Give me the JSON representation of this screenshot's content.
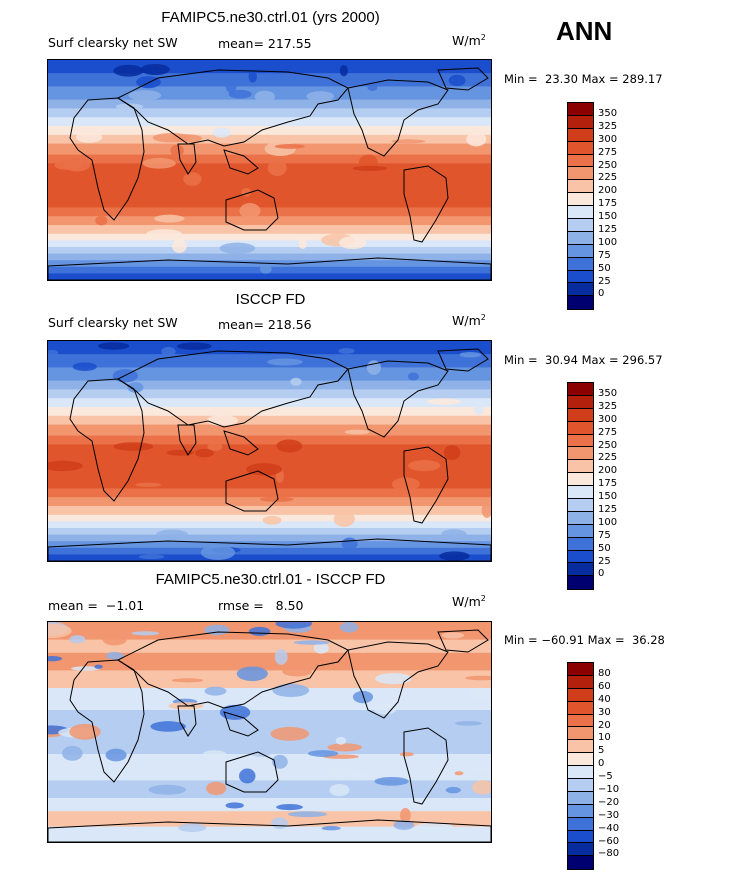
{
  "season": "ANN",
  "panels": [
    {
      "title": "FAMIPC5.ne30.ctrl.01 (yrs 2000)",
      "subtitle_left": "Surf clearsky net SW",
      "subtitle_mid": "mean= 217.55",
      "units": "W/m",
      "units_exp": "2",
      "minmax": "Min =  23.30 Max = 289.17",
      "type": "field",
      "colorbar_labels": [
        "350",
        "325",
        "300",
        "275",
        "250",
        "225",
        "200",
        "175",
        "150",
        "125",
        "100",
        "75",
        "50",
        "25",
        "0"
      ]
    },
    {
      "title": "ISCCP FD",
      "subtitle_left": "Surf clearsky net SW",
      "subtitle_mid": "mean= 218.56",
      "units": "W/m",
      "units_exp": "2",
      "minmax": "Min =  30.94 Max = 296.57",
      "type": "field",
      "colorbar_labels": [
        "350",
        "325",
        "300",
        "275",
        "250",
        "225",
        "200",
        "175",
        "150",
        "125",
        "100",
        "75",
        "50",
        "25",
        "0"
      ]
    },
    {
      "title": "FAMIPC5.ne30.ctrl.01 - ISCCP FD",
      "subtitle_left": "mean =  −1.01",
      "subtitle_mid": "rmse =   8.50",
      "units": "W/m",
      "units_exp": "2",
      "minmax": "Min = −60.91 Max =  36.28",
      "type": "diff",
      "colorbar_labels": [
        "80",
        "60",
        "40",
        "30",
        "20",
        "10",
        "5",
        "0",
        "−5",
        "−10",
        "−20",
        "−30",
        "−40",
        "−60",
        "−80"
      ]
    }
  ],
  "colors": {
    "scale": [
      "#8b0000",
      "#b3200c",
      "#d03d1a",
      "#e0552b",
      "#ea7148",
      "#f29670",
      "#f8c3a6",
      "#fbe8dc",
      "#d9e7f8",
      "#b5cdf0",
      "#8eb2e8",
      "#6594e0",
      "#3f72d8",
      "#1a4ecc",
      "#072c9e",
      "#000070"
    ],
    "coast": "#000000"
  }
}
